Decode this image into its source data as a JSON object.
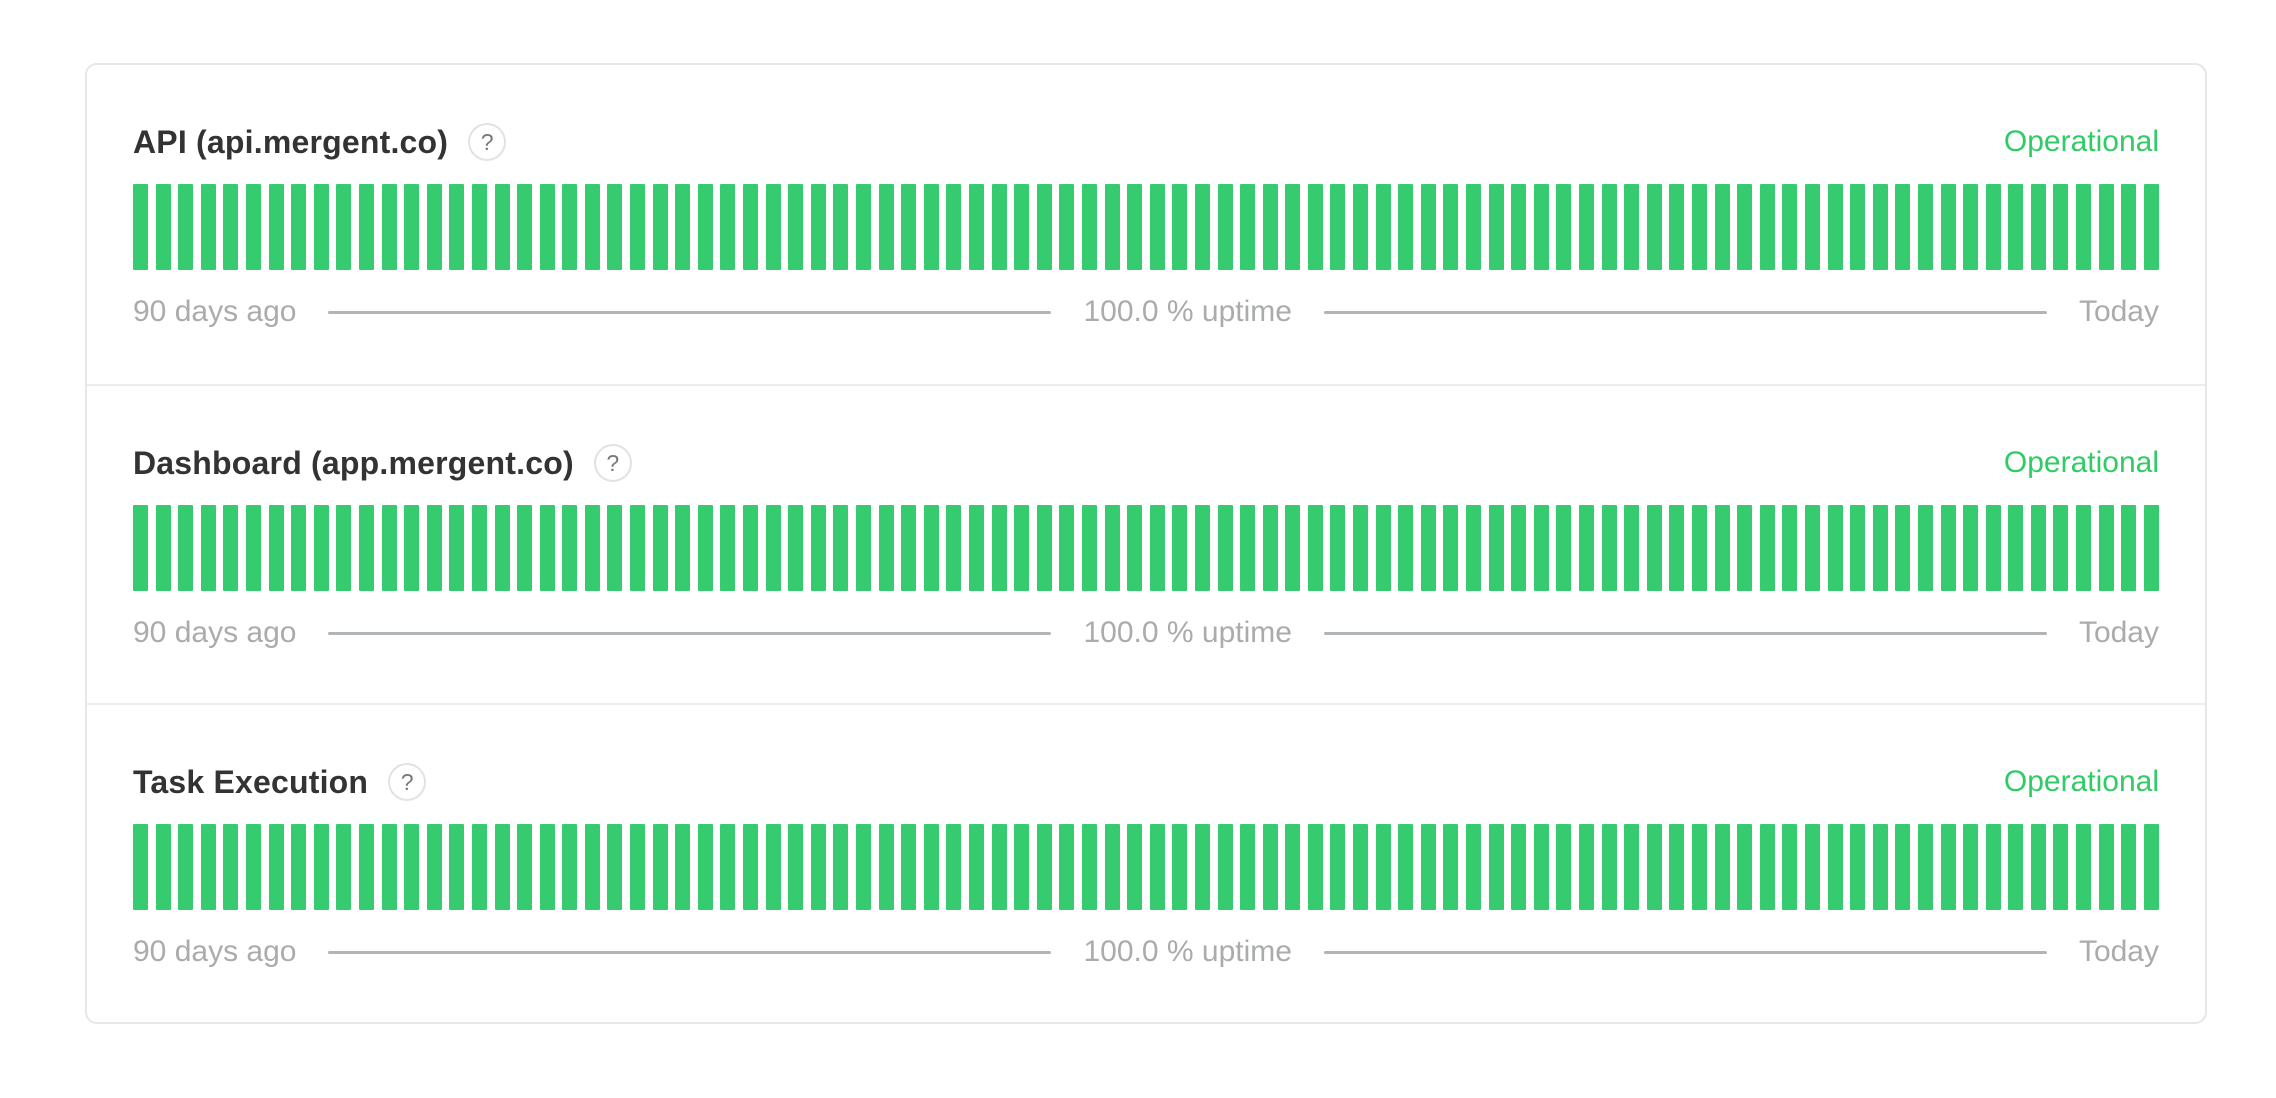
{
  "colors": {
    "bar_green": "#36cb6e",
    "status_green": "#2fcc66",
    "title_text": "#333333",
    "muted_text": "#a9abac",
    "legend_line": "#b2b5b7",
    "card_border": "#e7e7e7"
  },
  "uptime_legend": {
    "left_label": "90 days ago",
    "center_label": "100.0 % uptime",
    "right_label": "Today"
  },
  "help_icon_glyph": "?",
  "services": [
    {
      "name": "API (api.mergent.co)",
      "status": "Operational",
      "uptime": {
        "days": 90,
        "all_days_status": "operational",
        "uptime_percent": 100.0
      }
    },
    {
      "name": "Dashboard (app.mergent.co)",
      "status": "Operational",
      "uptime": {
        "days": 90,
        "all_days_status": "operational",
        "uptime_percent": 100.0
      }
    },
    {
      "name": "Task Execution",
      "status": "Operational",
      "uptime": {
        "days": 90,
        "all_days_status": "operational",
        "uptime_percent": 100.0
      }
    }
  ]
}
